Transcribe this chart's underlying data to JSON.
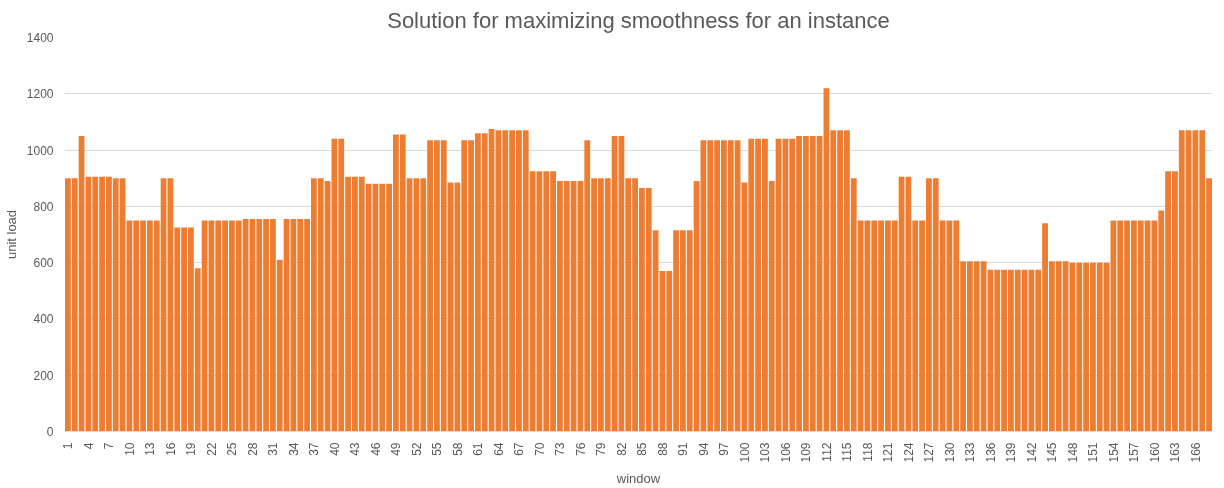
{
  "chart_data": {
    "type": "bar",
    "title": "Solution for maximizing smoothness for an instance",
    "xlabel": "window",
    "ylabel": "unit load",
    "color": "#ed7d31",
    "categories": [
      "1",
      null,
      null,
      "4",
      null,
      null,
      "7",
      null,
      null,
      "10",
      null,
      null,
      "13",
      null,
      null,
      "16",
      null,
      null,
      "19",
      null,
      null,
      "22",
      null,
      null,
      "25",
      null,
      null,
      "28",
      null,
      null,
      "31",
      null,
      null,
      "34",
      null,
      null,
      "37",
      null,
      null,
      "40",
      null,
      null,
      "43",
      null,
      null,
      "46",
      null,
      null,
      "49",
      null,
      null,
      "52",
      null,
      null,
      "55",
      null,
      null,
      "58",
      null,
      null,
      "61",
      null,
      null,
      "64",
      null,
      null,
      "67",
      null,
      null,
      "70",
      null,
      null,
      "73",
      null,
      null,
      "76",
      null,
      null,
      "79",
      null,
      null,
      "82",
      null,
      null,
      "85",
      null,
      null,
      "88",
      null,
      null,
      "91",
      null,
      null,
      "94",
      null,
      null,
      "97",
      null,
      null,
      "100",
      null,
      null,
      "103",
      null,
      null,
      "106",
      null,
      null,
      "109",
      null,
      null,
      "112",
      null,
      null,
      "115",
      null,
      null,
      "118",
      null,
      null,
      "121",
      null,
      null,
      "124",
      null,
      null,
      "127",
      null,
      null,
      "130",
      null,
      null,
      "133",
      null,
      null,
      "136",
      null,
      null,
      "139",
      null,
      null,
      "142",
      null,
      null,
      "145",
      null,
      null,
      "148",
      null,
      null,
      "151",
      null,
      null,
      "154",
      null,
      null,
      "157",
      null,
      null,
      "160",
      null,
      null,
      "163",
      null,
      null,
      "166",
      null,
      null
    ],
    "values": [
      900,
      900,
      1050,
      905,
      905,
      905,
      905,
      900,
      900,
      750,
      750,
      750,
      750,
      750,
      900,
      900,
      725,
      725,
      725,
      580,
      750,
      750,
      750,
      750,
      750,
      750,
      755,
      755,
      755,
      755,
      755,
      610,
      755,
      755,
      755,
      755,
      900,
      900,
      890,
      1040,
      1040,
      905,
      905,
      905,
      880,
      880,
      880,
      880,
      1055,
      1055,
      900,
      900,
      900,
      1035,
      1035,
      1035,
      885,
      885,
      1035,
      1035,
      1060,
      1060,
      1075,
      1070,
      1070,
      1070,
      1070,
      1070,
      925,
      925,
      925,
      925,
      890,
      890,
      890,
      890,
      1035,
      900,
      900,
      900,
      1050,
      1050,
      900,
      900,
      865,
      865,
      715,
      570,
      570,
      715,
      715,
      715,
      890,
      1035,
      1035,
      1035,
      1035,
      1035,
      1035,
      885,
      1040,
      1040,
      1040,
      890,
      1040,
      1040,
      1040,
      1050,
      1050,
      1050,
      1050,
      1220,
      1070,
      1070,
      1070,
      900,
      750,
      750,
      750,
      750,
      750,
      750,
      905,
      905,
      750,
      750,
      900,
      900,
      750,
      750,
      750,
      605,
      605,
      605,
      605,
      575,
      575,
      575,
      575,
      575,
      575,
      575,
      575,
      740,
      605,
      605,
      605,
      600,
      600,
      600,
      600,
      600,
      600,
      750,
      750,
      750,
      750,
      750,
      750,
      750,
      785,
      925,
      925,
      1070,
      1070,
      1070,
      1070,
      900
    ],
    "ylim": [
      0,
      1400
    ],
    "yticks": [
      0,
      200,
      400,
      600,
      800,
      1000,
      1200,
      1400
    ],
    "grid": "y"
  }
}
